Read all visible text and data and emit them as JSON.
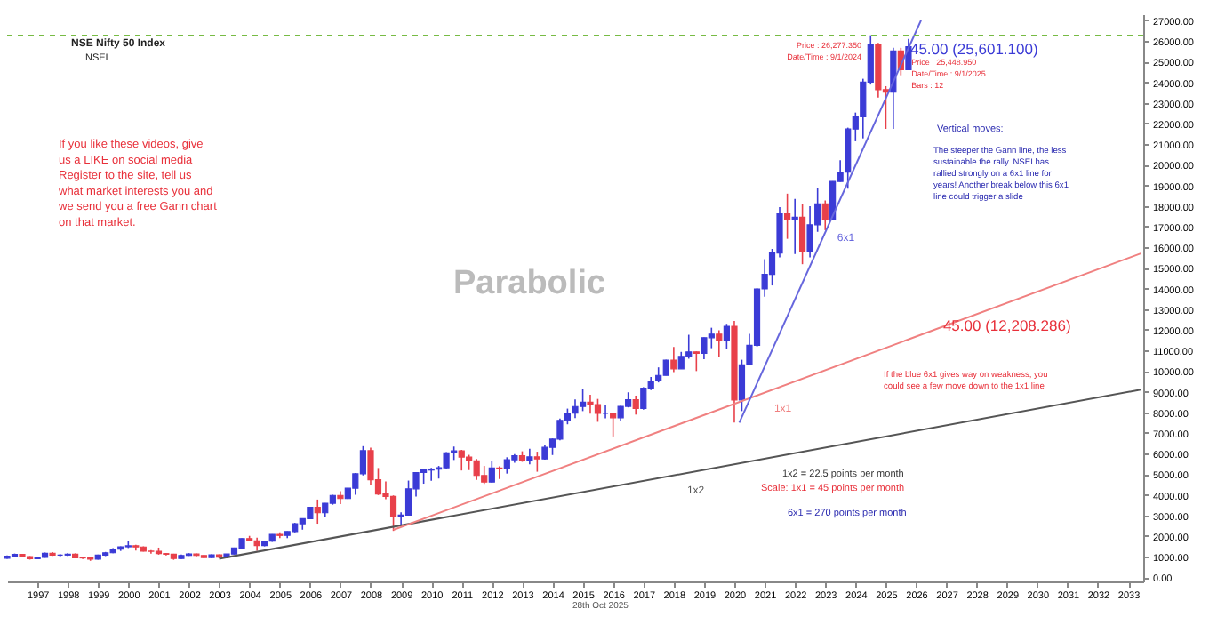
{
  "chart_data": {
    "type": "candlestick",
    "title": "NSE Nifty 50 Index",
    "subtitle": "NSEI",
    "xlim": [
      "1996-01",
      "2033-07"
    ],
    "xticks": [
      "1997",
      "1998",
      "1999",
      "2000",
      "2001",
      "2002",
      "2003",
      "2004",
      "2005",
      "2006",
      "2007",
      "2008",
      "2009",
      "2010",
      "2011",
      "2012",
      "2013",
      "2014",
      "2015",
      "2016",
      "2017",
      "2018",
      "2019",
      "2020",
      "2021",
      "2022",
      "2023",
      "2024",
      "2025",
      "2026",
      "2027",
      "2028",
      "2029",
      "2030",
      "2031",
      "2032",
      "2033"
    ],
    "ylim": [
      -200,
      27300
    ],
    "yticks": [
      {
        "value": 0,
        "label": "0.00"
      },
      {
        "value": 1000,
        "label": "1000.00"
      },
      {
        "value": 2000,
        "label": "2000.00"
      },
      {
        "value": 3000,
        "label": "3000.00"
      },
      {
        "value": 4000,
        "label": "4000.00"
      },
      {
        "value": 5000,
        "label": "5000.00"
      },
      {
        "value": 6000,
        "label": "6000.00"
      },
      {
        "value": 7000,
        "label": "7000.00"
      },
      {
        "value": 8000,
        "label": "8000.00"
      },
      {
        "value": 9000,
        "label": "9000.00"
      },
      {
        "value": 10000,
        "label": "10000.00"
      },
      {
        "value": 11000,
        "label": "11000.00"
      },
      {
        "value": 12000,
        "label": "12000.00"
      },
      {
        "value": 13000,
        "label": "13000.00"
      },
      {
        "value": 14000,
        "label": "14000.00"
      },
      {
        "value": 15000,
        "label": "15000.00"
      },
      {
        "value": 16000,
        "label": "16000.00"
      },
      {
        "value": 17000,
        "label": "17000.00"
      },
      {
        "value": 18000,
        "label": "18000.00"
      },
      {
        "value": 19000,
        "label": "19000.00"
      },
      {
        "value": 20000,
        "label": "20000.00"
      },
      {
        "value": 21000,
        "label": "21000.00"
      },
      {
        "value": 22000,
        "label": "22000.00"
      },
      {
        "value": 23000,
        "label": "23000.00"
      },
      {
        "value": 24000,
        "label": "24000.00"
      },
      {
        "value": 25000,
        "label": "25000.00"
      },
      {
        "value": 26000,
        "label": "26000.00"
      },
      {
        "value": 27000,
        "label": "27000.00"
      }
    ],
    "series": [
      {
        "x": [
          "1996-01",
          "1996-04",
          "1996-07",
          "1996-10",
          "1997-01",
          "1997-04",
          "1997-07",
          "1997-10",
          "1998-01",
          "1998-04",
          "1998-07",
          "1998-10",
          "1999-01",
          "1999-04",
          "1999-07",
          "1999-10",
          "2000-01",
          "2000-04",
          "2000-07",
          "2000-10",
          "2001-01",
          "2001-04",
          "2001-07",
          "2001-10",
          "2002-01",
          "2002-04",
          "2002-07",
          "2002-10",
          "2003-01",
          "2003-04",
          "2003-07",
          "2003-10",
          "2004-01",
          "2004-04",
          "2004-07",
          "2004-10",
          "2005-01",
          "2005-04",
          "2005-07",
          "2005-10",
          "2006-01",
          "2006-04",
          "2006-07",
          "2006-10",
          "2007-01",
          "2007-04",
          "2007-07",
          "2007-10",
          "2008-01",
          "2008-04",
          "2008-07",
          "2008-10",
          "2009-01",
          "2009-04",
          "2009-07",
          "2009-10",
          "2010-01",
          "2010-04",
          "2010-07",
          "2010-10",
          "2011-01",
          "2011-04",
          "2011-07",
          "2011-10",
          "2012-01",
          "2012-04",
          "2012-07",
          "2012-10",
          "2013-01",
          "2013-04",
          "2013-07",
          "2013-10",
          "2014-01",
          "2014-04",
          "2014-07",
          "2014-10",
          "2015-01",
          "2015-04",
          "2015-07",
          "2015-10",
          "2016-01",
          "2016-04",
          "2016-07",
          "2016-10",
          "2017-01",
          "2017-04",
          "2017-07",
          "2017-10",
          "2018-01",
          "2018-04",
          "2018-07",
          "2018-10",
          "2019-01",
          "2019-04",
          "2019-07",
          "2019-10",
          "2020-01",
          "2020-04",
          "2020-07",
          "2020-10",
          "2021-01",
          "2021-04",
          "2021-07",
          "2021-10",
          "2022-01",
          "2022-04",
          "2022-07",
          "2022-10",
          "2023-01",
          "2023-04",
          "2023-07",
          "2023-10",
          "2024-01",
          "2024-04",
          "2024-07",
          "2024-10",
          "2025-01",
          "2025-04",
          "2025-07",
          "2025-10"
        ],
        "ohlc": [
          [
            930,
            1060,
            900,
            1020
          ],
          [
            1020,
            1150,
            1000,
            1110
          ],
          [
            1110,
            1130,
            980,
            1000
          ],
          [
            1000,
            1030,
            860,
            900
          ],
          [
            900,
            1010,
            880,
            970
          ],
          [
            970,
            1200,
            950,
            1160
          ],
          [
            1160,
            1220,
            1040,
            1080
          ],
          [
            1080,
            1130,
            980,
            1080
          ],
          [
            1080,
            1180,
            1030,
            1120
          ],
          [
            1120,
            1160,
            920,
            950
          ],
          [
            950,
            1000,
            890,
            940
          ],
          [
            940,
            960,
            800,
            880
          ],
          [
            880,
            1100,
            860,
            1080
          ],
          [
            1080,
            1230,
            1030,
            1190
          ],
          [
            1190,
            1420,
            1170,
            1370
          ],
          [
            1370,
            1500,
            1280,
            1480
          ],
          [
            1480,
            1760,
            1420,
            1530
          ],
          [
            1530,
            1580,
            1300,
            1470
          ],
          [
            1470,
            1500,
            1250,
            1270
          ],
          [
            1270,
            1320,
            1150,
            1260
          ],
          [
            1260,
            1440,
            1100,
            1150
          ],
          [
            1150,
            1180,
            1060,
            1120
          ],
          [
            1120,
            1140,
            850,
            910
          ],
          [
            910,
            1100,
            890,
            1060
          ],
          [
            1060,
            1170,
            1040,
            1130
          ],
          [
            1130,
            1160,
            1020,
            1060
          ],
          [
            1060,
            1080,
            930,
            960
          ],
          [
            960,
            1110,
            930,
            1090
          ],
          [
            1090,
            1110,
            920,
            980
          ],
          [
            980,
            1140,
            930,
            1130
          ],
          [
            1130,
            1440,
            1110,
            1420
          ],
          [
            1420,
            1890,
            1400,
            1880
          ],
          [
            1880,
            2010,
            1740,
            1770
          ],
          [
            1770,
            1920,
            1290,
            1540
          ],
          [
            1540,
            1770,
            1500,
            1750
          ],
          [
            1750,
            2090,
            1720,
            2080
          ],
          [
            2080,
            2180,
            1900,
            2030
          ],
          [
            2030,
            2230,
            1900,
            2220
          ],
          [
            2220,
            2640,
            2180,
            2600
          ],
          [
            2600,
            2850,
            2310,
            2840
          ],
          [
            2840,
            3420,
            2830,
            3400
          ],
          [
            3400,
            3770,
            2600,
            3130
          ],
          [
            3130,
            3600,
            2910,
            3590
          ],
          [
            3590,
            4000,
            3520,
            3970
          ],
          [
            3970,
            4170,
            3550,
            3820
          ],
          [
            3820,
            4330,
            3800,
            4320
          ],
          [
            4320,
            5060,
            4000,
            5020
          ],
          [
            5020,
            6360,
            4940,
            6140
          ],
          [
            6140,
            6290,
            4470,
            4730
          ],
          [
            4730,
            5300,
            3990,
            4040
          ],
          [
            4040,
            4650,
            3790,
            3920
          ],
          [
            3920,
            3970,
            2250,
            2960
          ],
          [
            2960,
            3150,
            2540,
            3020
          ],
          [
            3020,
            4690,
            3000,
            4290
          ],
          [
            4290,
            5090,
            3920,
            5080
          ],
          [
            5080,
            5220,
            4540,
            5200
          ],
          [
            5200,
            5310,
            4680,
            5250
          ],
          [
            5250,
            5400,
            4790,
            5310
          ],
          [
            5310,
            6070,
            5230,
            6030
          ],
          [
            6030,
            6340,
            5690,
            6130
          ],
          [
            6130,
            6180,
            5180,
            5830
          ],
          [
            5830,
            5940,
            5200,
            5650
          ],
          [
            5650,
            5740,
            4720,
            4940
          ],
          [
            4940,
            5400,
            4530,
            4620
          ],
          [
            4620,
            5630,
            4590,
            5300
          ],
          [
            5300,
            5380,
            4770,
            5280
          ],
          [
            5280,
            5820,
            5030,
            5700
          ],
          [
            5700,
            5970,
            5550,
            5900
          ],
          [
            5900,
            6110,
            5600,
            5680
          ],
          [
            5680,
            6230,
            5480,
            5840
          ],
          [
            5840,
            6090,
            5120,
            5740
          ],
          [
            5740,
            6420,
            5700,
            6300
          ],
          [
            6300,
            6730,
            5930,
            6700
          ],
          [
            6700,
            7700,
            6640,
            7610
          ],
          [
            7610,
            8180,
            7420,
            7960
          ],
          [
            7960,
            8630,
            7720,
            8280
          ],
          [
            8280,
            9120,
            8060,
            8490
          ],
          [
            8490,
            8850,
            7940,
            8370
          ],
          [
            8370,
            8650,
            7540,
            7950
          ],
          [
            7950,
            8340,
            7710,
            7950
          ],
          [
            7950,
            7970,
            6830,
            7740
          ],
          [
            7740,
            8310,
            7580,
            8290
          ],
          [
            8290,
            8970,
            8240,
            8610
          ],
          [
            8610,
            8810,
            7890,
            8190
          ],
          [
            8190,
            9220,
            8130,
            9170
          ],
          [
            9170,
            9710,
            9080,
            9520
          ],
          [
            9520,
            10180,
            9450,
            9790
          ],
          [
            9790,
            10550,
            9790,
            10530
          ],
          [
            10530,
            11170,
            9950,
            10110
          ],
          [
            10110,
            10930,
            10110,
            10710
          ],
          [
            10710,
            11760,
            10600,
            10930
          ],
          [
            10930,
            10950,
            10000,
            10860
          ],
          [
            10860,
            11630,
            10580,
            11620
          ],
          [
            11620,
            12100,
            11110,
            11790
          ],
          [
            11790,
            11980,
            10670,
            11470
          ],
          [
            11470,
            12290,
            11090,
            12170
          ],
          [
            12170,
            12430,
            7510,
            8600
          ],
          [
            8600,
            10550,
            8060,
            10300
          ],
          [
            10300,
            11800,
            10300,
            11250
          ],
          [
            11250,
            14020,
            11180,
            13980
          ],
          [
            13980,
            15430,
            13600,
            14690
          ],
          [
            14690,
            15920,
            14150,
            15720
          ],
          [
            15720,
            17950,
            15510,
            17620
          ],
          [
            17620,
            18600,
            16410,
            17350
          ],
          [
            17350,
            18350,
            15670,
            17460
          ],
          [
            17460,
            18110,
            15180,
            15780
          ],
          [
            15780,
            17990,
            15510,
            17090
          ],
          [
            17090,
            18890,
            16750,
            18100
          ],
          [
            18100,
            18270,
            16830,
            17360
          ],
          [
            17360,
            19200,
            17310,
            19190
          ],
          [
            19190,
            20220,
            19180,
            19640
          ],
          [
            19640,
            21800,
            18840,
            21730
          ],
          [
            21730,
            22530,
            21140,
            22330
          ],
          [
            22330,
            24170,
            21280,
            24010
          ],
          [
            24010,
            26280,
            23890,
            25810
          ],
          [
            25810,
            25910,
            23260,
            23640
          ],
          [
            23640,
            23810,
            21740,
            23520
          ],
          [
            23520,
            25670,
            21740,
            25520
          ],
          [
            25520,
            25670,
            24340,
            24610
          ],
          [
            24610,
            26100,
            24590,
            25720
          ]
        ],
        "colors": [
          "#3b3bd6",
          "#3b3bd6",
          "#e8404a",
          "#e8404a",
          "#3b3bd6",
          "#3b3bd6",
          "#e8404a",
          "#3b3bd6",
          "#3b3bd6",
          "#e8404a",
          "#e8404a",
          "#e8404a",
          "#3b3bd6",
          "#3b3bd6",
          "#3b3bd6",
          "#3b3bd6",
          "#3b3bd6",
          "#e8404a",
          "#e8404a",
          "#e8404a",
          "#e8404a",
          "#e8404a",
          "#e8404a",
          "#3b3bd6",
          "#3b3bd6",
          "#e8404a",
          "#e8404a",
          "#3b3bd6",
          "#e8404a",
          "#3b3bd6",
          "#3b3bd6",
          "#3b3bd6",
          "#e8404a",
          "#e8404a",
          "#3b3bd6",
          "#3b3bd6",
          "#e8404a",
          "#3b3bd6",
          "#3b3bd6",
          "#3b3bd6",
          "#3b3bd6",
          "#e8404a",
          "#3b3bd6",
          "#3b3bd6",
          "#e8404a",
          "#3b3bd6",
          "#3b3bd6",
          "#3b3bd6",
          "#e8404a",
          "#e8404a",
          "#e8404a",
          "#e8404a",
          "#3b3bd6",
          "#3b3bd6",
          "#3b3bd6",
          "#3b3bd6",
          "#3b3bd6",
          "#3b3bd6",
          "#3b3bd6",
          "#3b3bd6",
          "#e8404a",
          "#e8404a",
          "#e8404a",
          "#e8404a",
          "#3b3bd6",
          "#e8404a",
          "#3b3bd6",
          "#3b3bd6",
          "#e8404a",
          "#3b3bd6",
          "#e8404a",
          "#3b3bd6",
          "#3b3bd6",
          "#3b3bd6",
          "#3b3bd6",
          "#3b3bd6",
          "#3b3bd6",
          "#e8404a",
          "#e8404a",
          "#3b3bd6",
          "#e8404a",
          "#3b3bd6",
          "#3b3bd6",
          "#e8404a",
          "#3b3bd6",
          "#3b3bd6",
          "#3b3bd6",
          "#3b3bd6",
          "#e8404a",
          "#3b3bd6",
          "#3b3bd6",
          "#e8404a",
          "#3b3bd6",
          "#3b3bd6",
          "#e8404a",
          "#3b3bd6",
          "#e8404a",
          "#3b3bd6",
          "#3b3bd6",
          "#3b3bd6",
          "#3b3bd6",
          "#3b3bd6",
          "#3b3bd6",
          "#e8404a",
          "#3b3bd6",
          "#e8404a",
          "#3b3bd6",
          "#3b3bd6",
          "#e8404a",
          "#3b3bd6",
          "#3b3bd6",
          "#3b3bd6",
          "#3b3bd6",
          "#3b3bd6",
          "#3b3bd6",
          "#e8404a",
          "#e8404a",
          "#3b3bd6",
          "#e8404a",
          "#3b3bd6"
        ]
      },
      {
        "type": "line",
        "name": "1x2",
        "color": "#555555",
        "x": [
          "2003-01",
          "2033-06"
        ],
        "values": [
          900,
          9100
        ]
      },
      {
        "type": "line",
        "name": "1x1",
        "color": "#f08080",
        "x": [
          "2008-10",
          "2033-06"
        ],
        "values": [
          2300,
          15700
        ]
      },
      {
        "type": "line",
        "name": "6x1",
        "color": "#6666dd",
        "x": [
          "2020-03",
          "2026-03"
        ],
        "values": [
          7500,
          27000
        ]
      }
    ],
    "ref_lines": [
      {
        "axis": "y",
        "value": 26277.35,
        "color": "#77bb44",
        "line_style": "dashed"
      }
    ],
    "annotations": [
      "If you like these videos, give us a LIKE on social media Register to the site, tell us what market interests you and we send you a free Gann chart on that market.",
      "Parabolic",
      {
        "text": "45.00 (25,601.100)",
        "x": "2025-10",
        "y": 25601.1
      },
      {
        "text": "45.00 (12,208.286)",
        "x": "2026-11",
        "y": 12208.286
      },
      {
        "text": "Price : 26,277.350\nDate/Time : 9/1/2024",
        "x": "2024-09",
        "y": 26277.35
      },
      {
        "text": "Price : 25,448.950\nDate/Time : 9/1/2025\nBars : 12",
        "x": "2025-09",
        "y": 25448.95
      },
      "Vertical moves:",
      "The steeper the Gann line, the less sustainable the rally. NSEI has rallied strongly on a 6x1 line for years! Another break below this 6x1 line could trigger a slide",
      "If the blue 6x1 gives way on weakness, you could see a few move down to the 1x1 line",
      "1x2 = 22.5 points per month",
      "Scale:  1x1 = 45 points per month",
      "6x1 = 270 points per month",
      "28th Oct 2025"
    ]
  }
}
